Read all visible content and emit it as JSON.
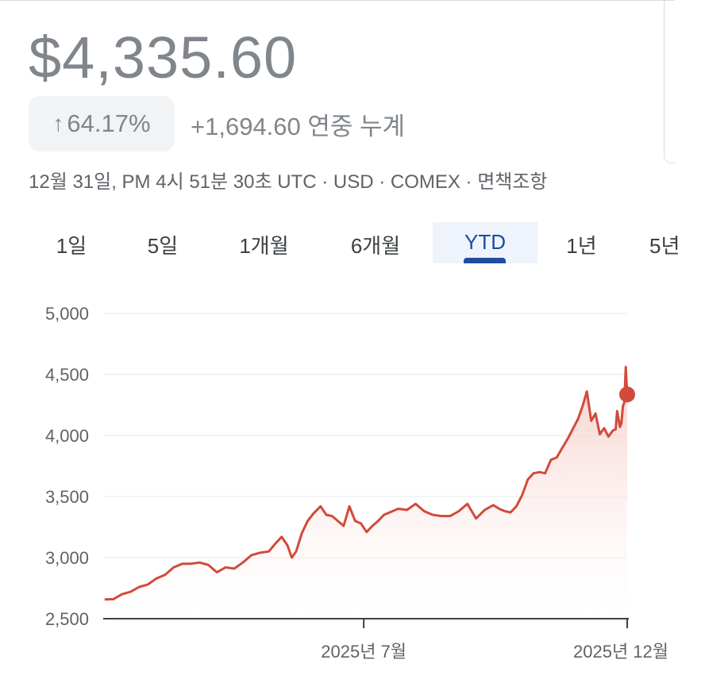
{
  "header": {
    "price": "$4,335.60",
    "change_pct_arrow": "↑",
    "change_pct": "64.17%",
    "change_abs": "+1,694.60 연중 누계",
    "meta": "12월 31일, PM 4시 51분 30초 UTC · USD · COMEX · 면책조항"
  },
  "tabs": [
    {
      "label": "1일"
    },
    {
      "label": "5일"
    },
    {
      "label": "1개월"
    },
    {
      "label": "6개월"
    },
    {
      "label": "YTD",
      "active": true
    },
    {
      "label": "1년"
    },
    {
      "label": "5년"
    }
  ],
  "colors": {
    "line": "#d24a3a",
    "fill_top": "#f4c9c3",
    "grid": "#eef0f2",
    "active_tab_bg": "#eef3fc",
    "active_tab_indicator": "#1f4e9e"
  },
  "chart_data": {
    "type": "area",
    "y_ticks": [
      "5,000",
      "4,500",
      "4,000",
      "3,500",
      "3,000",
      "2,500"
    ],
    "y_tick_values": [
      5000,
      4500,
      4000,
      3500,
      3000,
      2500
    ],
    "ylim": [
      2500,
      5000
    ],
    "x_tick_labels": [
      "2025년 7월",
      "2025년 12월"
    ],
    "x_tick_dates": [
      "2025-07-01",
      "2025-12-31"
    ],
    "xlim": [
      "2025-01-01",
      "2025-12-31"
    ],
    "grid": true,
    "series": [
      {
        "points": [
          [
            "2025-01-02",
            2658
          ],
          [
            "2025-01-08",
            2660
          ],
          [
            "2025-01-14",
            2700
          ],
          [
            "2025-01-20",
            2720
          ],
          [
            "2025-01-26",
            2760
          ],
          [
            "2025-02-01",
            2780
          ],
          [
            "2025-02-07",
            2830
          ],
          [
            "2025-02-13",
            2860
          ],
          [
            "2025-02-19",
            2920
          ],
          [
            "2025-02-25",
            2950
          ],
          [
            "2025-03-03",
            2950
          ],
          [
            "2025-03-09",
            2960
          ],
          [
            "2025-03-15",
            2940
          ],
          [
            "2025-03-21",
            2880
          ],
          [
            "2025-03-27",
            2920
          ],
          [
            "2025-04-02",
            2910
          ],
          [
            "2025-04-08",
            2960
          ],
          [
            "2025-04-14",
            3020
          ],
          [
            "2025-04-20",
            3040
          ],
          [
            "2025-04-26",
            3050
          ],
          [
            "2025-05-01",
            3120
          ],
          [
            "2025-05-05",
            3170
          ],
          [
            "2025-05-09",
            3100
          ],
          [
            "2025-05-12",
            3000
          ],
          [
            "2025-05-15",
            3050
          ],
          [
            "2025-05-19",
            3200
          ],
          [
            "2025-05-23",
            3300
          ],
          [
            "2025-05-27",
            3360
          ],
          [
            "2025-06-01",
            3420
          ],
          [
            "2025-06-05",
            3350
          ],
          [
            "2025-06-09",
            3340
          ],
          [
            "2025-06-13",
            3300
          ],
          [
            "2025-06-17",
            3260
          ],
          [
            "2025-06-21",
            3420
          ],
          [
            "2025-06-25",
            3300
          ],
          [
            "2025-06-29",
            3280
          ],
          [
            "2025-07-03",
            3210
          ],
          [
            "2025-07-07",
            3260
          ],
          [
            "2025-07-11",
            3300
          ],
          [
            "2025-07-15",
            3350
          ],
          [
            "2025-07-19",
            3370
          ],
          [
            "2025-07-25",
            3400
          ],
          [
            "2025-07-31",
            3390
          ],
          [
            "2025-08-06",
            3440
          ],
          [
            "2025-08-12",
            3380
          ],
          [
            "2025-08-18",
            3350
          ],
          [
            "2025-08-24",
            3340
          ],
          [
            "2025-08-30",
            3340
          ],
          [
            "2025-09-05",
            3380
          ],
          [
            "2025-09-11",
            3440
          ],
          [
            "2025-09-14",
            3380
          ],
          [
            "2025-09-17",
            3320
          ],
          [
            "2025-09-23",
            3390
          ],
          [
            "2025-09-29",
            3430
          ],
          [
            "2025-10-03",
            3400
          ],
          [
            "2025-10-07",
            3380
          ],
          [
            "2025-10-11",
            3370
          ],
          [
            "2025-10-15",
            3420
          ],
          [
            "2025-10-19",
            3510
          ],
          [
            "2025-10-23",
            3640
          ],
          [
            "2025-10-27",
            3690
          ],
          [
            "2025-10-31",
            3700
          ],
          [
            "2025-11-04",
            3690
          ],
          [
            "2025-11-08",
            3800
          ],
          [
            "2025-11-12",
            3820
          ],
          [
            "2025-11-16",
            3900
          ],
          [
            "2025-11-20",
            3980
          ],
          [
            "2025-11-24",
            4070
          ],
          [
            "2025-11-27",
            4140
          ],
          [
            "2025-11-30",
            4240
          ],
          [
            "2025-12-03",
            4360
          ],
          [
            "2025-12-06",
            4120
          ],
          [
            "2025-12-09",
            4180
          ],
          [
            "2025-12-12",
            4010
          ],
          [
            "2025-12-15",
            4060
          ],
          [
            "2025-12-18",
            3990
          ],
          [
            "2025-12-21",
            4040
          ],
          [
            "2025-12-23",
            4050
          ],
          [
            "2025-12-24",
            4200
          ],
          [
            "2025-12-26",
            4070
          ],
          [
            "2025-12-27",
            4100
          ],
          [
            "2025-12-28",
            4240
          ],
          [
            "2025-12-29",
            4270
          ],
          [
            "2025-12-30",
            4560
          ],
          [
            "2025-12-31",
            4335.6
          ]
        ]
      }
    ]
  }
}
